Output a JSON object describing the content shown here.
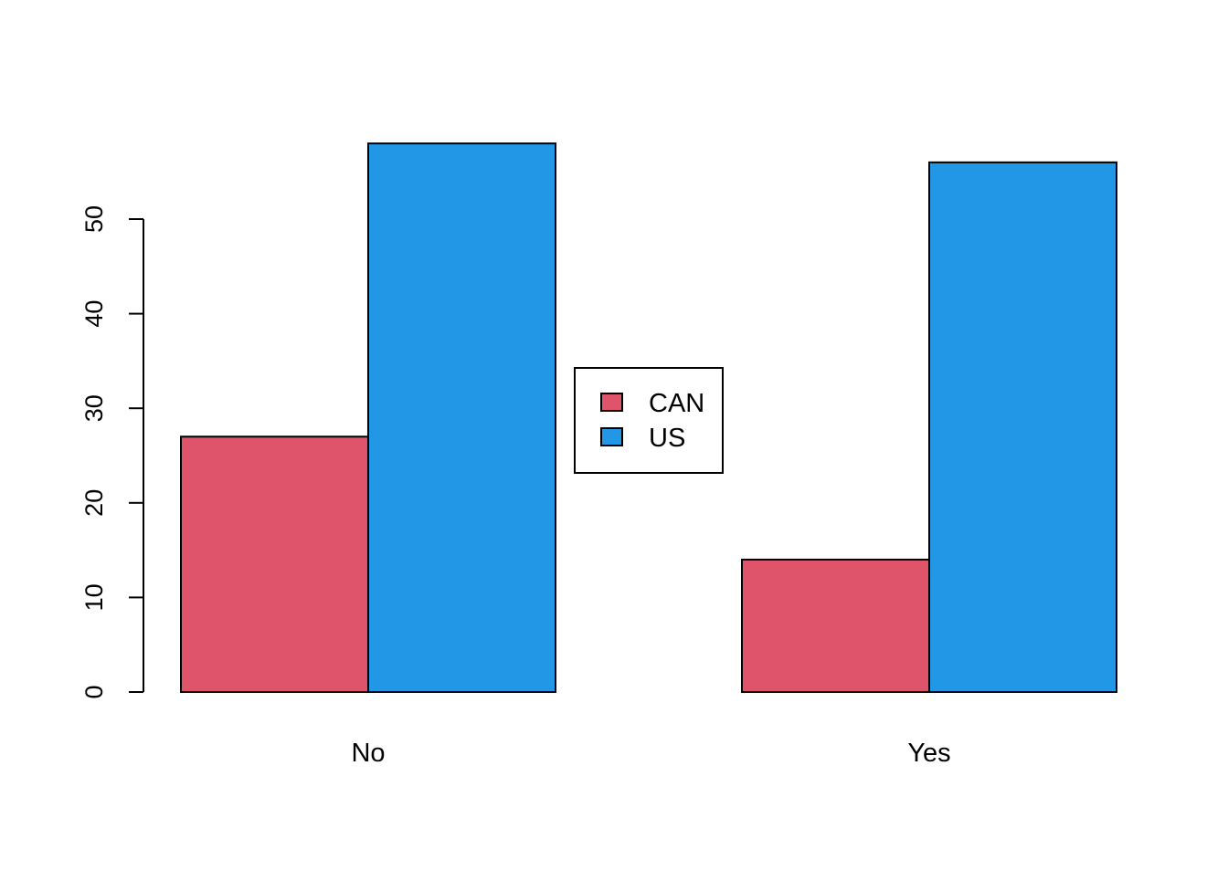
{
  "chart_data": {
    "type": "bar",
    "categories": [
      "No",
      "Yes"
    ],
    "series": [
      {
        "name": "CAN",
        "values": [
          27,
          14
        ],
        "color": "#DF536B"
      },
      {
        "name": "US",
        "values": [
          58,
          56
        ],
        "color": "#2297E6"
      }
    ],
    "title": "",
    "xlabel": "",
    "ylabel": "",
    "ylim": [
      0,
      58
    ],
    "yticks": [
      0,
      10,
      20,
      30,
      40,
      50
    ],
    "grid": false,
    "legend_position": "center",
    "bar_outline_color": "#000000"
  }
}
